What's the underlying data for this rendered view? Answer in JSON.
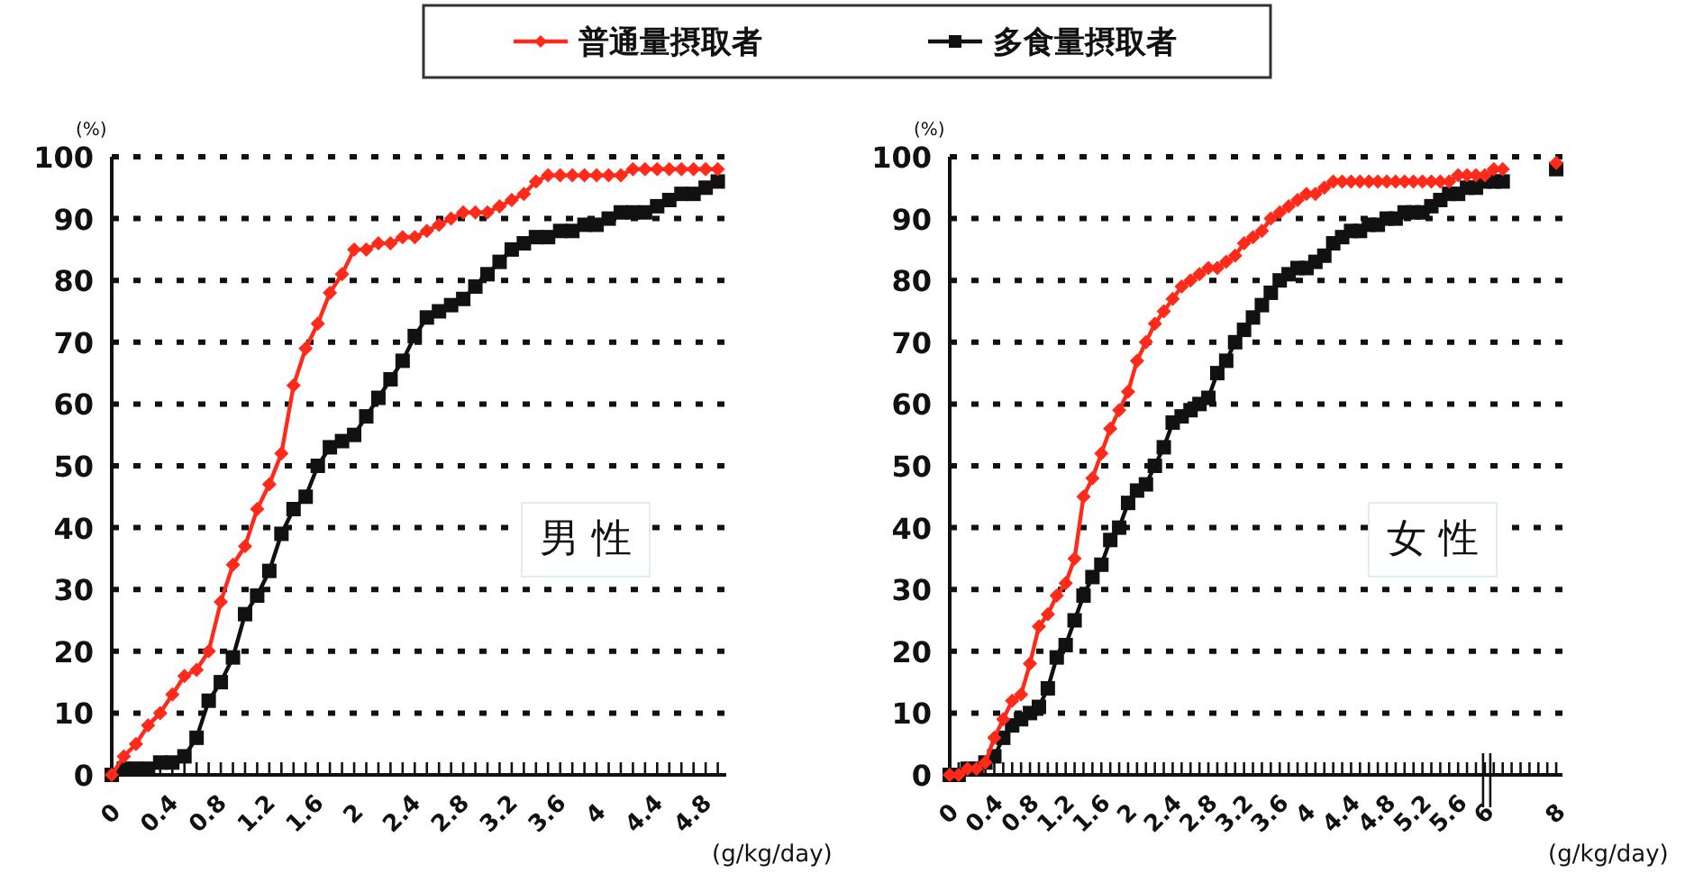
{
  "chart_data": [
    {
      "type": "line",
      "ylabel": "(%)",
      "xlabel": "(g/kg/day)",
      "legend": "top",
      "grid": "y",
      "ylim": [
        0,
        100
      ],
      "yticks": [
        0,
        10,
        20,
        30,
        40,
        50,
        60,
        70,
        80,
        90,
        100
      ],
      "annotations": [
        "男 性"
      ],
      "categories": [
        "0",
        null,
        null,
        null,
        "0.4",
        null,
        null,
        null,
        "0.8",
        null,
        null,
        null,
        "1.2",
        null,
        null,
        null,
        "1.6",
        null,
        null,
        null,
        "2",
        null,
        null,
        null,
        "2.4",
        null,
        null,
        null,
        "2.8",
        null,
        null,
        null,
        "3.2",
        null,
        null,
        null,
        "3.6",
        null,
        null,
        null,
        "4",
        null,
        null,
        null,
        "4.4",
        null,
        null,
        null,
        "4.8",
        null,
        null
      ],
      "series": [
        {
          "name": "普通量摂取者",
          "color": "#ff2a1a",
          "marker": "diamond",
          "values": [
            0,
            3,
            5,
            8,
            10,
            13,
            16,
            17,
            20,
            28,
            34,
            37,
            43,
            47,
            52,
            63,
            69,
            73,
            78,
            81,
            85,
            85,
            86,
            86,
            87,
            87,
            88,
            89,
            90,
            91,
            91,
            91,
            92,
            93,
            94,
            96,
            97,
            97,
            97,
            97,
            97,
            97,
            97,
            98,
            98,
            98,
            98,
            98,
            98,
            98,
            98
          ]
        },
        {
          "name": "多食量摂取者",
          "color": "#111111",
          "marker": "square",
          "values": [
            0,
            1,
            1,
            1,
            2,
            2,
            3,
            6,
            12,
            15,
            19,
            26,
            29,
            33,
            39,
            43,
            45,
            50,
            53,
            54,
            55,
            58,
            61,
            64,
            67,
            71,
            74,
            75,
            76,
            77,
            79,
            81,
            83,
            85,
            86,
            87,
            87,
            88,
            88,
            89,
            89,
            90,
            91,
            91,
            91,
            92,
            93,
            94,
            94,
            95,
            96
          ]
        }
      ]
    },
    {
      "type": "line",
      "ylabel": "(%)",
      "xlabel": "(g/kg/day)",
      "grid": "y",
      "ylim": [
        0,
        100
      ],
      "yticks": [
        0,
        10,
        20,
        30,
        40,
        50,
        60,
        70,
        80,
        90,
        100
      ],
      "annotations": [
        "女 性"
      ],
      "categories": [
        "0",
        null,
        null,
        null,
        "0.4",
        null,
        null,
        null,
        "0.8",
        null,
        null,
        null,
        "1.2",
        null,
        null,
        null,
        "1.6",
        null,
        null,
        null,
        "2",
        null,
        null,
        null,
        "2.4",
        null,
        null,
        null,
        "2.8",
        null,
        null,
        null,
        "3.2",
        null,
        null,
        null,
        "3.6",
        null,
        null,
        null,
        "4",
        null,
        null,
        null,
        "4.4",
        null,
        null,
        null,
        "4.8",
        null,
        null,
        null,
        "5.2",
        null,
        null,
        null,
        "5.6",
        null,
        null,
        null,
        "6",
        null,
        null,
        null,
        null,
        null,
        null,
        null,
        "8"
      ],
      "series": [
        {
          "color": "#ff2a1a",
          "marker": "diamond",
          "values": [
            0,
            0,
            1,
            1,
            2,
            6,
            9,
            12,
            13,
            18,
            24,
            26,
            29,
            31,
            35,
            45,
            48,
            52,
            56,
            59,
            62,
            67,
            70,
            73,
            75,
            77,
            79,
            80,
            81,
            82,
            82,
            83,
            84,
            86,
            87,
            88,
            90,
            91,
            92,
            93,
            94,
            94,
            95,
            96,
            96,
            96,
            96,
            96,
            96,
            96,
            96,
            96,
            96,
            96,
            96,
            96,
            96,
            97,
            97,
            97,
            97,
            98,
            98,
            null,
            null,
            null,
            null,
            null,
            99
          ]
        },
        {
          "color": "#111111",
          "marker": "square",
          "values": [
            0,
            0,
            1,
            1,
            2,
            3,
            6,
            8,
            9,
            10,
            11,
            14,
            19,
            21,
            25,
            29,
            32,
            34,
            38,
            40,
            44,
            46,
            47,
            50,
            53,
            57,
            58,
            59,
            60,
            61,
            65,
            67,
            70,
            72,
            74,
            76,
            78,
            80,
            81,
            82,
            82,
            83,
            84,
            86,
            87,
            88,
            88,
            89,
            89,
            90,
            90,
            91,
            91,
            91,
            92,
            93,
            94,
            94,
            95,
            95,
            96,
            96,
            96,
            null,
            null,
            null,
            null,
            null,
            98
          ]
        }
      ]
    }
  ]
}
